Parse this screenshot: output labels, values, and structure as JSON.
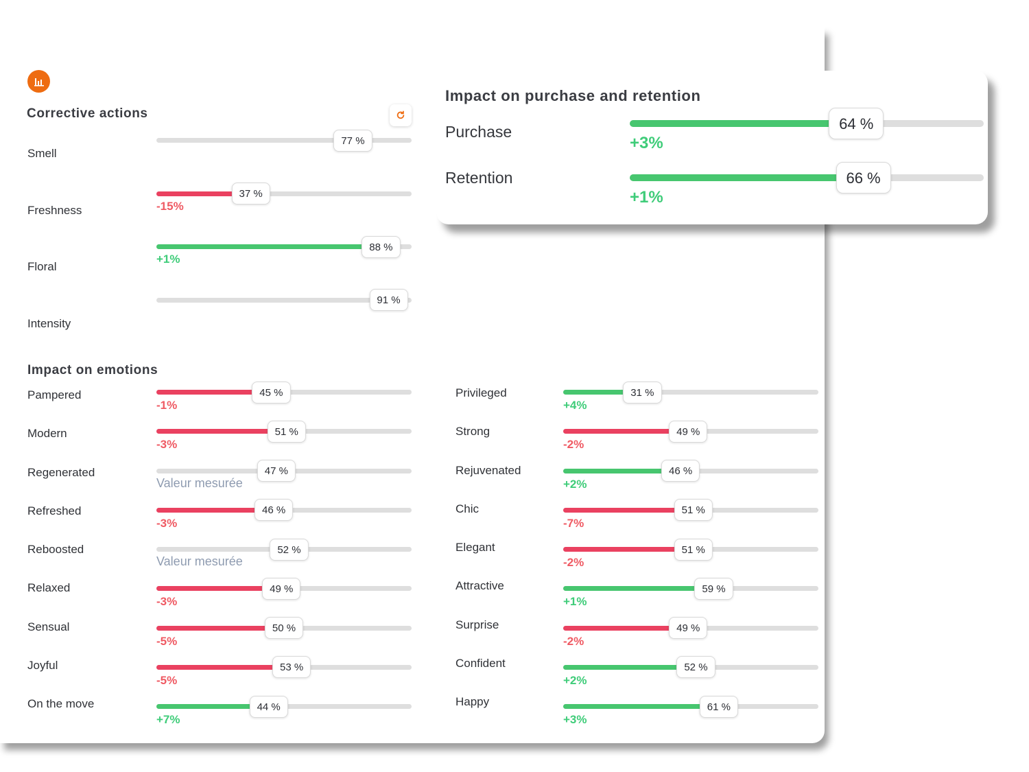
{
  "colors": {
    "positive": "#47c66f",
    "negative": "#ea4160",
    "track": "#dedede",
    "accent": "#ee6c11",
    "positive_text": "#3fcc79",
    "negative_text": "#ef5a63"
  },
  "icons": {
    "logo": "bar-chart-icon",
    "refresh": "refresh-icon"
  },
  "corrective": {
    "title": "Corrective actions",
    "items": [
      {
        "label": "Smell",
        "value": 77,
        "display": "77 %",
        "delta": null,
        "trend": "none"
      },
      {
        "label": "Freshness",
        "value": 37,
        "display": "37 %",
        "delta": "-15%",
        "trend": "neg"
      },
      {
        "label": "Floral",
        "value": 88,
        "display": "88 %",
        "delta": "+1%",
        "trend": "pos"
      },
      {
        "label": "Intensity",
        "value": 91,
        "display": "91 %",
        "delta": null,
        "trend": "none"
      }
    ]
  },
  "purchase": {
    "title": "Impact on purchase and retention",
    "items": [
      {
        "label": "Purchase",
        "value": 64,
        "display": "64 %",
        "delta": "+3%",
        "trend": "pos"
      },
      {
        "label": "Retention",
        "value": 66,
        "display": "66 %",
        "delta": "+1%",
        "trend": "pos"
      }
    ]
  },
  "emotions": {
    "title": "Impact on emotions",
    "measured_label": "Valeur mesurée",
    "left": [
      {
        "label": "Pampered",
        "value": 45,
        "display": "45 %",
        "delta": "-1%",
        "trend": "neg"
      },
      {
        "label": "Modern",
        "value": 51,
        "display": "51 %",
        "delta": "-3%",
        "trend": "neg"
      },
      {
        "label": "Regenerated",
        "value": 47,
        "display": "47 %",
        "delta": null,
        "trend": "measured"
      },
      {
        "label": "Refreshed",
        "value": 46,
        "display": "46 %",
        "delta": "-3%",
        "trend": "neg"
      },
      {
        "label": "Reboosted",
        "value": 52,
        "display": "52 %",
        "delta": null,
        "trend": "measured"
      },
      {
        "label": "Relaxed",
        "value": 49,
        "display": "49 %",
        "delta": "-3%",
        "trend": "neg"
      },
      {
        "label": "Sensual",
        "value": 50,
        "display": "50 %",
        "delta": "-5%",
        "trend": "neg"
      },
      {
        "label": "Joyful",
        "value": 53,
        "display": "53 %",
        "delta": "-5%",
        "trend": "neg"
      },
      {
        "label": "On the move",
        "value": 44,
        "display": "44 %",
        "delta": "+7%",
        "trend": "pos"
      }
    ],
    "right": [
      {
        "label": "Privileged",
        "value": 31,
        "display": "31 %",
        "delta": "+4%",
        "trend": "pos"
      },
      {
        "label": "Strong",
        "value": 49,
        "display": "49 %",
        "delta": "-2%",
        "trend": "neg"
      },
      {
        "label": "Rejuvenated",
        "value": 46,
        "display": "46 %",
        "delta": "+2%",
        "trend": "pos"
      },
      {
        "label": "Chic",
        "value": 51,
        "display": "51 %",
        "delta": "-7%",
        "trend": "neg"
      },
      {
        "label": "Elegant",
        "value": 51,
        "display": "51 %",
        "delta": "-2%",
        "trend": "neg"
      },
      {
        "label": "Attractive",
        "value": 59,
        "display": "59 %",
        "delta": "+1%",
        "trend": "pos"
      },
      {
        "label": "Surprise",
        "value": 49,
        "display": "49 %",
        "delta": "-2%",
        "trend": "neg"
      },
      {
        "label": "Confident",
        "value": 52,
        "display": "52 %",
        "delta": "+2%",
        "trend": "pos"
      },
      {
        "label": "Happy",
        "value": 61,
        "display": "61 %",
        "delta": "+3%",
        "trend": "pos"
      }
    ]
  }
}
